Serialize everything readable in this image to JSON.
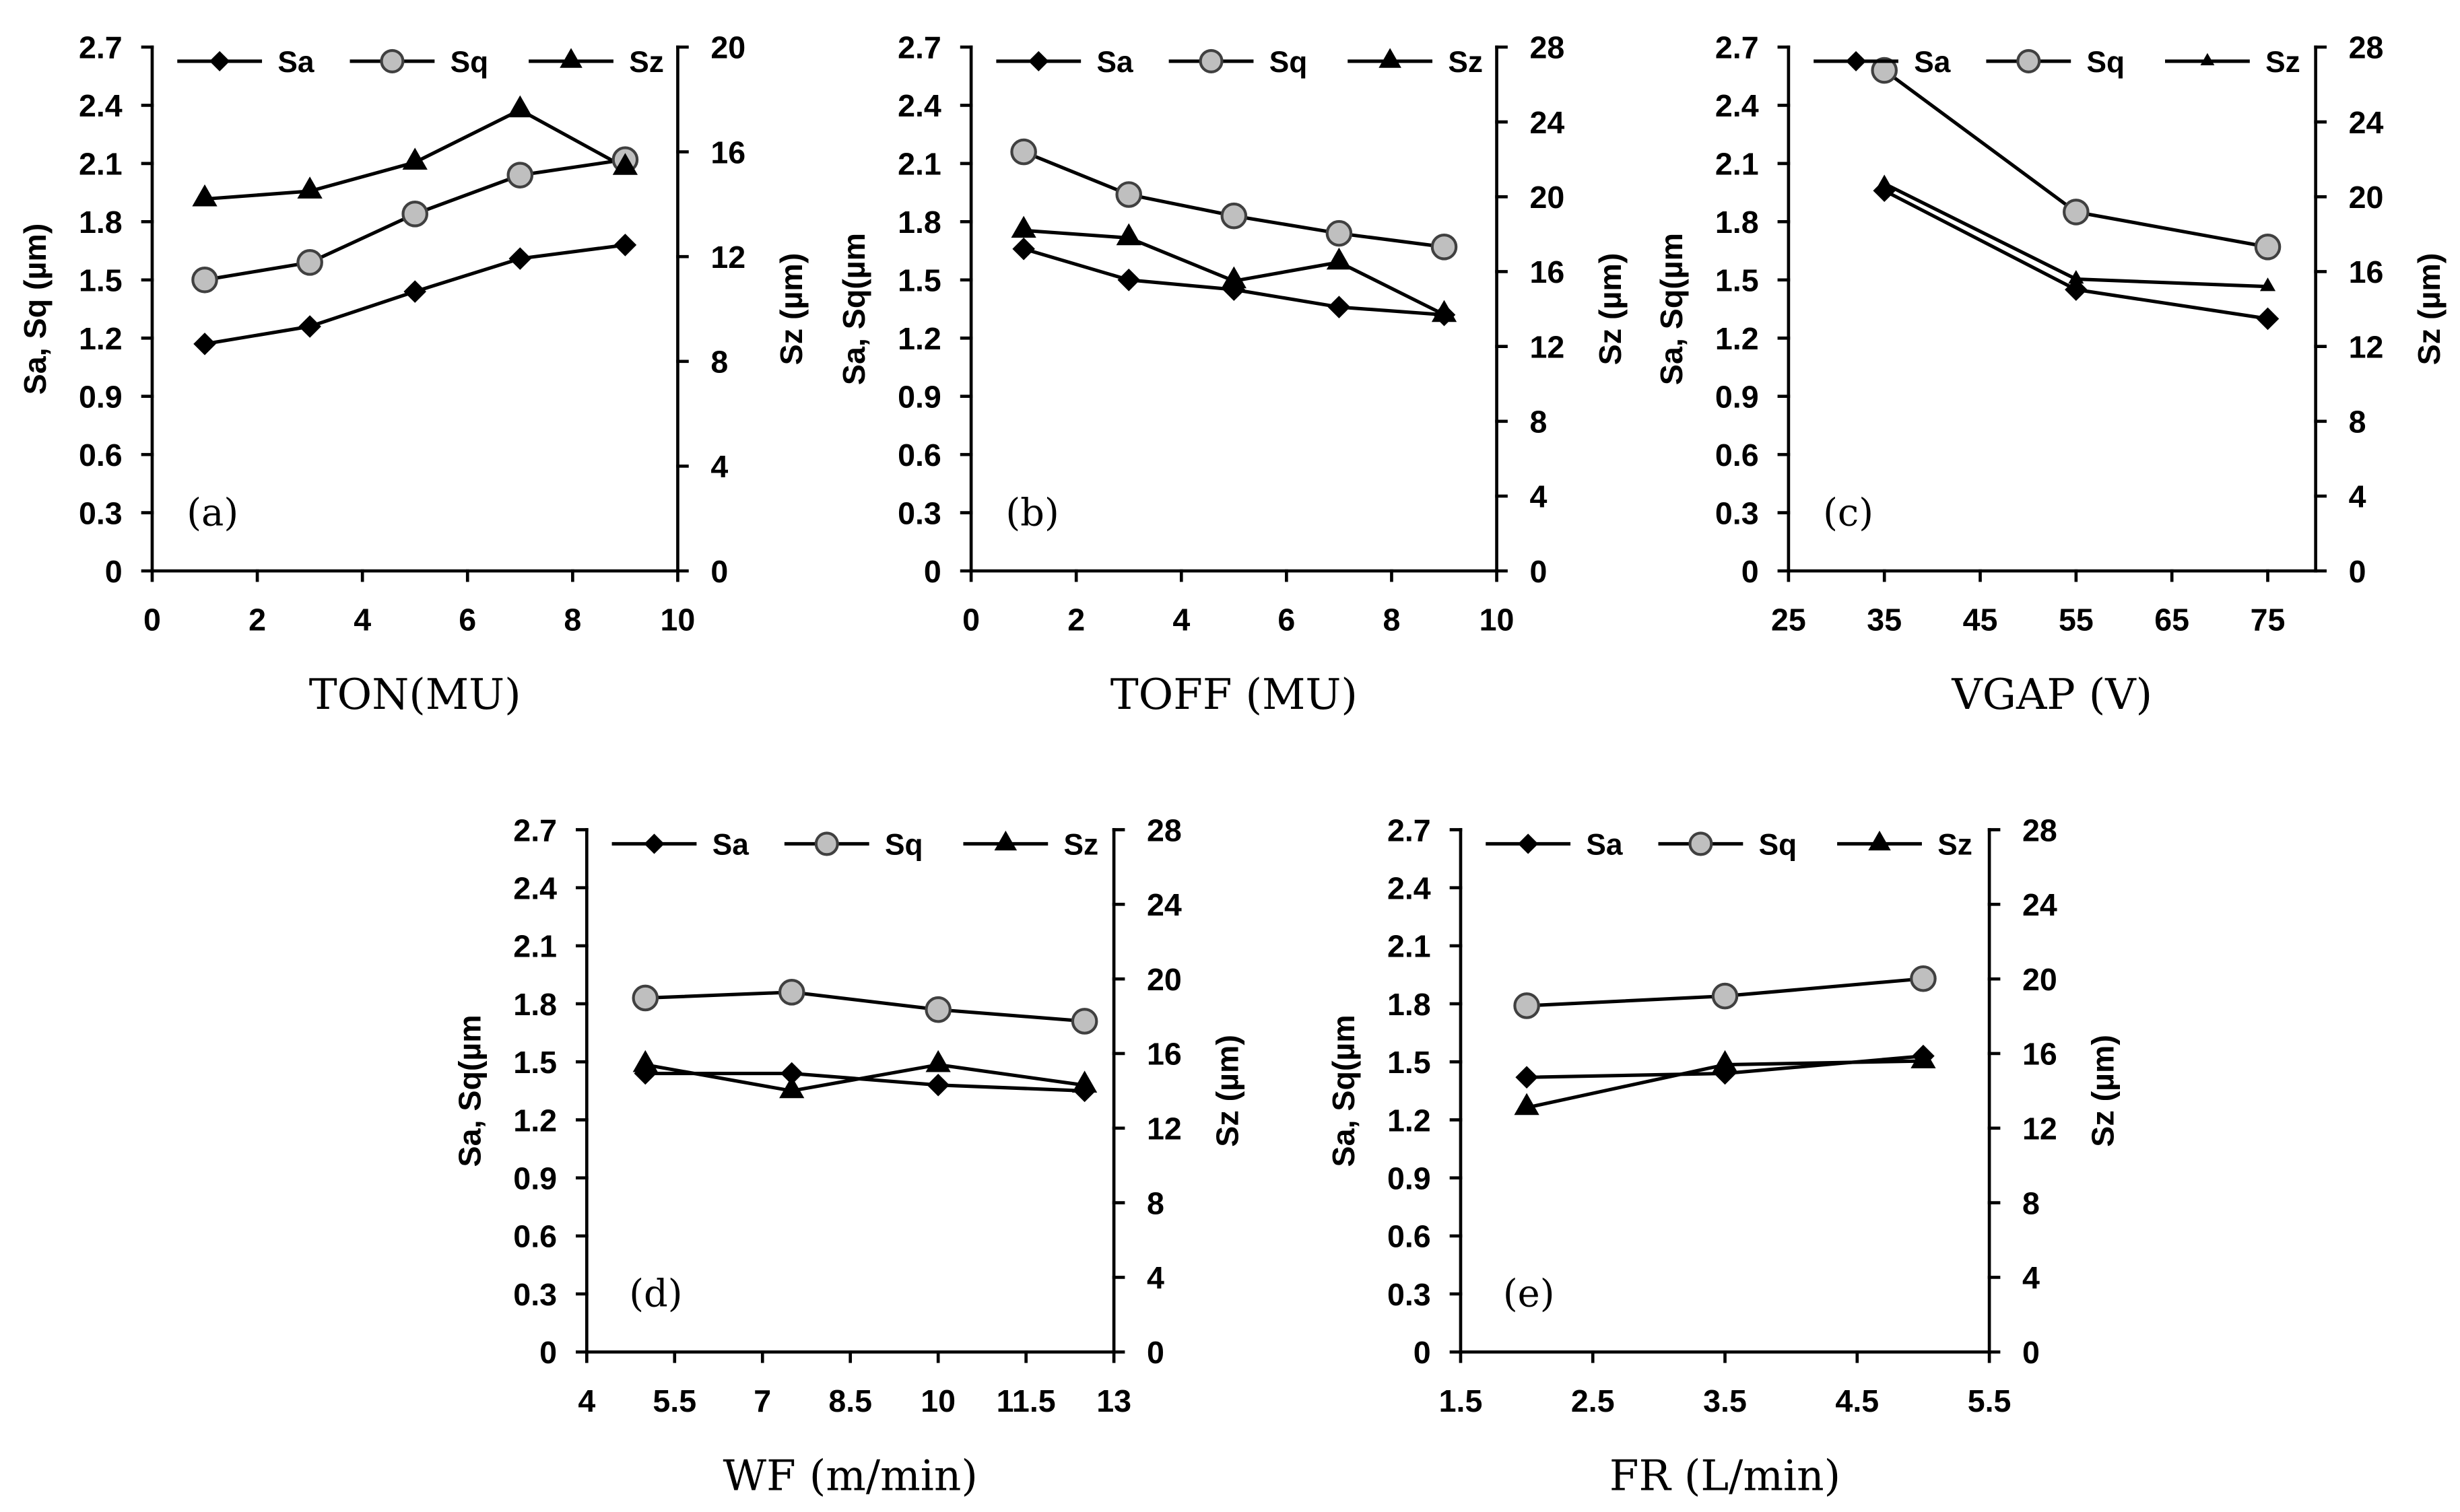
{
  "colors": {
    "background": "#FFFFFF",
    "axis": "#000000",
    "line": "#000000",
    "marker_dark": "#000000",
    "circle_fill": "#BFBFBF",
    "circle_stroke": "#404040"
  },
  "chart_data": [
    {
      "type": "line",
      "panel_label": "(a)",
      "xlabel": "TON(MU)",
      "ylabel": "Sa, Sq (µm)",
      "y2label": "Sz (µm)",
      "xlim": [
        0,
        10
      ],
      "xticks": [
        "0",
        "2",
        "4",
        "6",
        "8",
        "10"
      ],
      "ylim": [
        0,
        2.7
      ],
      "yticks": [
        "0",
        "0.3",
        "0.6",
        "0.9",
        "1.2",
        "1.5",
        "1.8",
        "2.1",
        "2.4",
        "2.7"
      ],
      "y2lim": [
        0,
        20
      ],
      "y2ticks": [
        "0",
        "4",
        "8",
        "12",
        "16",
        "20"
      ],
      "grid": false,
      "legend": "top",
      "series": [
        {
          "name": "Sa",
          "marker": "diamond",
          "secondary_axis": false,
          "x": [
            1,
            3,
            5,
            7,
            9
          ],
          "values": [
            1.17,
            1.26,
            1.44,
            1.61,
            1.68
          ]
        },
        {
          "name": "Sq",
          "marker": "circle",
          "secondary_axis": false,
          "x": [
            1,
            3,
            5,
            7,
            9
          ],
          "values": [
            1.5,
            1.59,
            1.84,
            2.04,
            2.12
          ]
        },
        {
          "name": "Sz",
          "marker": "triangle",
          "secondary_axis": true,
          "x": [
            1,
            3,
            5,
            7,
            9
          ],
          "values": [
            14.2,
            14.5,
            15.6,
            17.6,
            15.4
          ]
        }
      ]
    },
    {
      "type": "line",
      "panel_label": "(b)",
      "xlabel": "TOFF (MU)",
      "ylabel": "Sa, Sq(µm",
      "y2label": "Sz (µm)",
      "xlim": [
        0,
        10
      ],
      "xticks": [
        "0",
        "2",
        "4",
        "6",
        "8",
        "10"
      ],
      "ylim": [
        0,
        2.7
      ],
      "yticks": [
        "0",
        "0.3",
        "0.6",
        "0.9",
        "1.2",
        "1.5",
        "1.8",
        "2.1",
        "2.4",
        "2.7"
      ],
      "y2lim": [
        0,
        28
      ],
      "y2ticks": [
        "0",
        "4",
        "8",
        "12",
        "16",
        "20",
        "24",
        "28"
      ],
      "grid": false,
      "legend": "top",
      "series": [
        {
          "name": "Sa",
          "marker": "diamond",
          "secondary_axis": false,
          "x": [
            1,
            3,
            5,
            7,
            9
          ],
          "values": [
            1.66,
            1.5,
            1.45,
            1.36,
            1.32
          ]
        },
        {
          "name": "Sq",
          "marker": "circle",
          "secondary_axis": false,
          "x": [
            1,
            3,
            5,
            7,
            9
          ],
          "values": [
            2.16,
            1.94,
            1.83,
            1.74,
            1.67
          ]
        },
        {
          "name": "Sz",
          "marker": "triangle",
          "secondary_axis": true,
          "x": [
            1,
            3,
            5,
            7,
            9
          ],
          "values": [
            18.2,
            17.8,
            15.5,
            16.5,
            13.7
          ]
        }
      ]
    },
    {
      "type": "line",
      "panel_label": "(c)",
      "xlabel": "VGAP (V)",
      "ylabel": "Sa, Sq(µm",
      "y2label": "Sz (µm)",
      "xlim": [
        25,
        80
      ],
      "xticks": [
        "25",
        "35",
        "45",
        "55",
        "65",
        "75"
      ],
      "ylim": [
        0,
        2.7
      ],
      "yticks": [
        "0",
        "0.3",
        "0.6",
        "0.9",
        "1.2",
        "1.5",
        "1.8",
        "2.1",
        "2.4",
        "2.7"
      ],
      "y2lim": [
        0,
        28
      ],
      "y2ticks": [
        "0",
        "4",
        "8",
        "12",
        "16",
        "20",
        "24",
        "28"
      ],
      "grid": false,
      "legend": "top",
      "series": [
        {
          "name": "Sa",
          "marker": "diamond",
          "secondary_axis": false,
          "x": [
            35,
            55,
            75
          ],
          "values": [
            1.96,
            1.45,
            1.3
          ]
        },
        {
          "name": "Sq",
          "marker": "circle",
          "secondary_axis": false,
          "x": [
            35,
            55,
            75
          ],
          "values": [
            2.58,
            1.85,
            1.67
          ]
        },
        {
          "name": "Sz",
          "marker": "triangle",
          "secondary_axis": true,
          "x": [
            35,
            55,
            75
          ],
          "values": [
            20.7,
            15.6,
            15.2
          ]
        }
      ]
    },
    {
      "type": "line",
      "panel_label": "(d)",
      "xlabel": "WF (m/min)",
      "ylabel": "Sa, Sq(µm",
      "y2label": "Sz (µm)",
      "xlim": [
        4,
        13
      ],
      "xticks": [
        "4",
        "5.5",
        "7",
        "8.5",
        "10",
        "11.5",
        "13"
      ],
      "ylim": [
        0,
        2.7
      ],
      "yticks": [
        "0",
        "0.3",
        "0.6",
        "0.9",
        "1.2",
        "1.5",
        "1.8",
        "2.1",
        "2.4",
        "2.7"
      ],
      "y2lim": [
        0,
        28
      ],
      "y2ticks": [
        "0",
        "4",
        "8",
        "12",
        "16",
        "20",
        "24",
        "28"
      ],
      "grid": false,
      "legend": "top",
      "series": [
        {
          "name": "Sa",
          "marker": "diamond",
          "secondary_axis": false,
          "x": [
            5,
            7.5,
            10,
            12.5
          ],
          "values": [
            1.44,
            1.44,
            1.38,
            1.35
          ]
        },
        {
          "name": "Sq",
          "marker": "circle",
          "secondary_axis": false,
          "x": [
            5,
            7.5,
            10,
            12.5
          ],
          "values": [
            1.83,
            1.86,
            1.77,
            1.71
          ]
        },
        {
          "name": "Sz",
          "marker": "triangle",
          "secondary_axis": true,
          "x": [
            5,
            7.5,
            10,
            12.5
          ],
          "values": [
            15.4,
            14.0,
            15.4,
            14.3
          ]
        }
      ]
    },
    {
      "type": "line",
      "panel_label": "(e)",
      "xlabel": "FR (L/min)",
      "ylabel": "Sa, Sq(µm",
      "y2label": "Sz (µm)",
      "xlim": [
        1.5,
        5.5
      ],
      "xticks": [
        "1.5",
        "2.5",
        "3.5",
        "4.5",
        "5.5"
      ],
      "ylim": [
        0,
        2.7
      ],
      "yticks": [
        "0",
        "0.3",
        "0.6",
        "0.9",
        "1.2",
        "1.5",
        "1.8",
        "2.1",
        "2.4",
        "2.7"
      ],
      "y2lim": [
        0,
        28
      ],
      "y2ticks": [
        "0",
        "4",
        "8",
        "12",
        "16",
        "20",
        "24",
        "28"
      ],
      "grid": false,
      "legend": "top",
      "series": [
        {
          "name": "Sa",
          "marker": "diamond",
          "secondary_axis": false,
          "x": [
            2,
            3.5,
            5
          ],
          "values": [
            1.42,
            1.44,
            1.53
          ]
        },
        {
          "name": "Sq",
          "marker": "circle",
          "secondary_axis": false,
          "x": [
            2,
            3.5,
            5
          ],
          "values": [
            1.79,
            1.84,
            1.93
          ]
        },
        {
          "name": "Sz",
          "marker": "triangle",
          "secondary_axis": true,
          "x": [
            2,
            3.5,
            5
          ],
          "values": [
            13.1,
            15.4,
            15.6
          ]
        }
      ]
    }
  ]
}
